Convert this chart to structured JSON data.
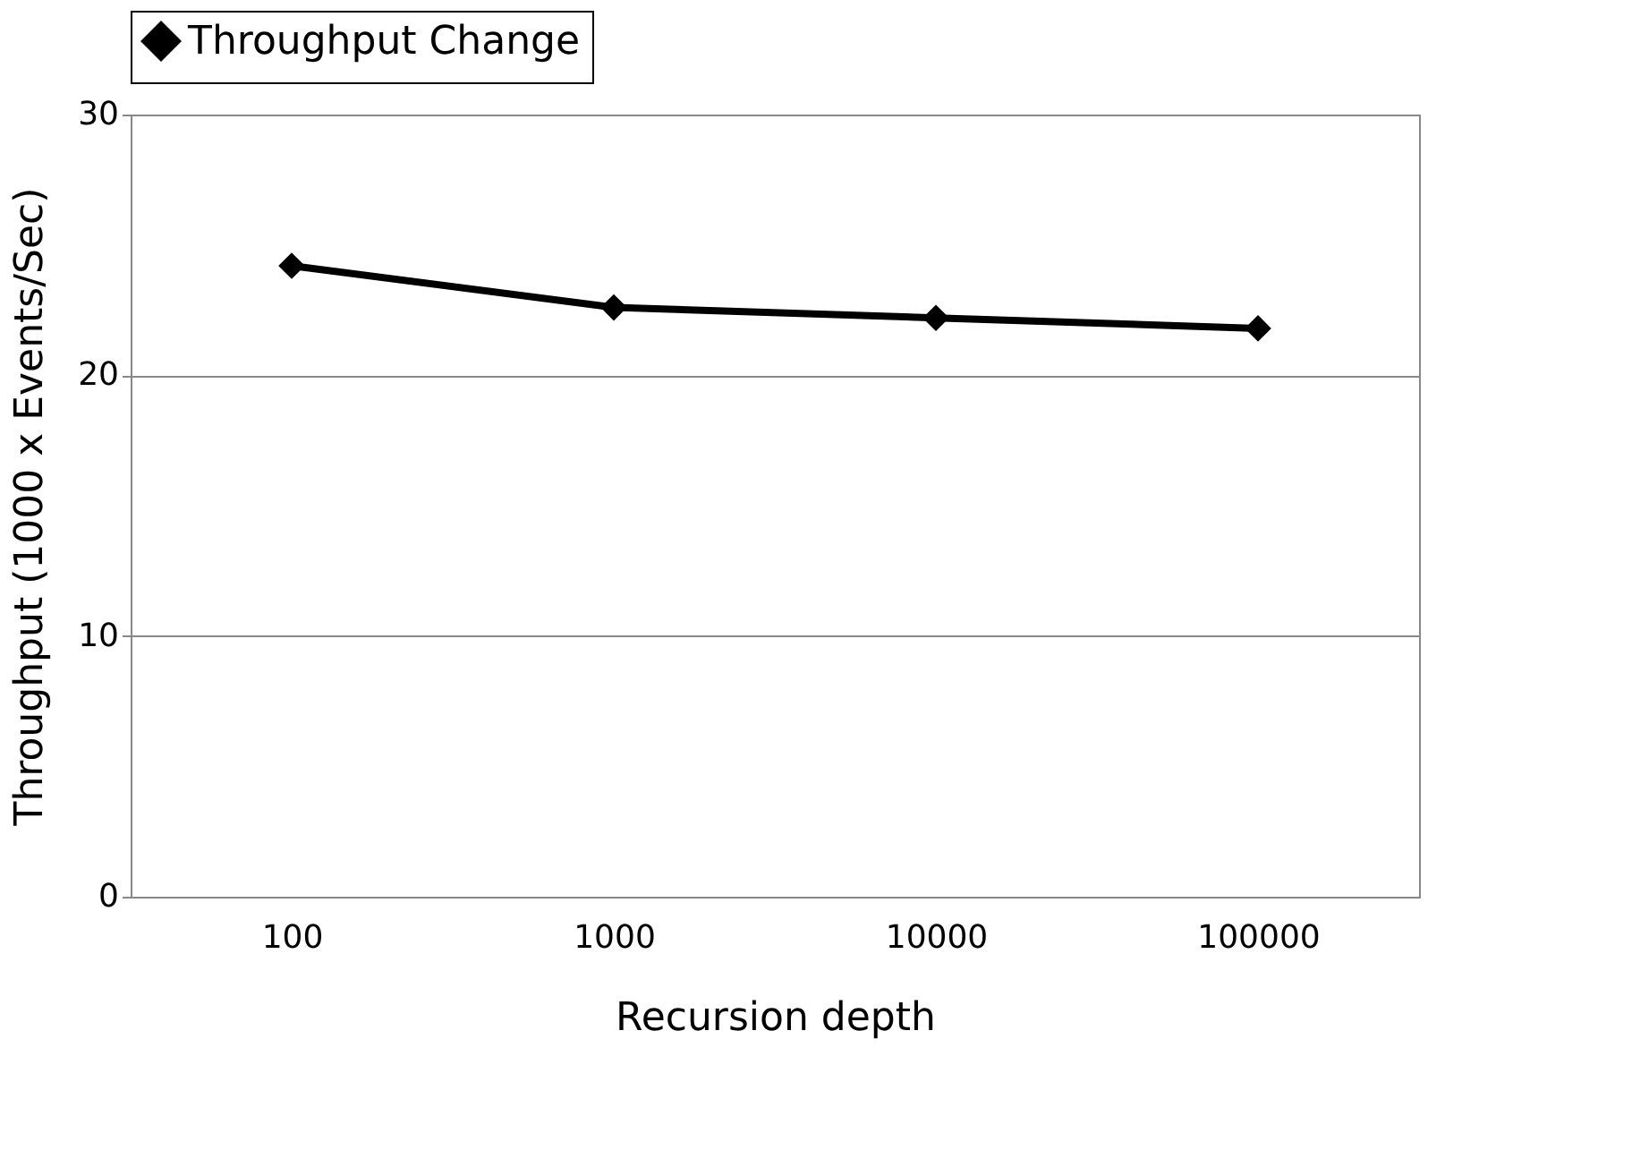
{
  "chart_data": {
    "type": "line",
    "xlabel": "Recursion depth",
    "ylabel": "Throughput (1000 x Events/Sec)",
    "categories": [
      "100",
      "1000",
      "10000",
      "100000"
    ],
    "series": [
      {
        "name": "Throughput Change",
        "color": "#000000",
        "values": [
          24.2,
          22.6,
          22.2,
          21.8
        ]
      }
    ],
    "ylim": [
      0,
      30
    ],
    "yticks": [
      0,
      10,
      20,
      30
    ],
    "grid": "y",
    "legend": "top",
    "marker": "diamond",
    "line_style": "solid"
  }
}
